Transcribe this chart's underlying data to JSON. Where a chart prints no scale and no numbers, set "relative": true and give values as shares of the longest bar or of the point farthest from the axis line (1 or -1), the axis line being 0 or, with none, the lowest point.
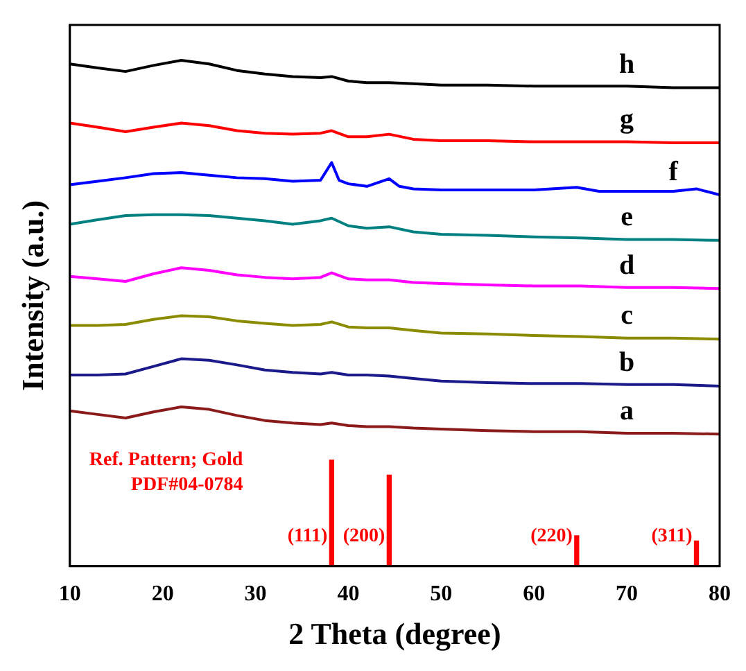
{
  "chart_data": {
    "type": "line",
    "relative": true,
    "xlabel": "2 Theta (degree)",
    "ylabel": "Intensity (a.u.)",
    "xlim": [
      10,
      80
    ],
    "xticks": [
      10,
      20,
      30,
      40,
      50,
      60,
      70,
      80
    ],
    "tick_labels": "x",
    "grid": false,
    "legend": false,
    "marker": "none",
    "line_style": "solid",
    "series": [
      {
        "name": "a",
        "color": "#8b1a1a",
        "x": [
          10,
          13,
          16,
          19,
          22,
          25,
          28,
          31,
          34,
          37,
          38.2,
          40,
          42,
          44.4,
          47,
          50,
          55,
          60,
          65,
          70,
          75,
          80
        ],
        "values": [
          0.307,
          0.3,
          0.293,
          0.305,
          0.315,
          0.31,
          0.298,
          0.288,
          0.283,
          0.28,
          0.283,
          0.278,
          0.276,
          0.276,
          0.273,
          0.271,
          0.268,
          0.266,
          0.266,
          0.263,
          0.263,
          0.261
        ]
      },
      {
        "name": "b",
        "color": "#1a1a8b",
        "x": [
          10,
          13,
          16,
          19,
          22,
          25,
          28,
          31,
          34,
          37,
          38.2,
          40,
          42,
          44.4,
          47,
          50,
          55,
          60,
          65,
          70,
          75,
          80
        ],
        "values": [
          0.378,
          0.378,
          0.38,
          0.395,
          0.41,
          0.407,
          0.398,
          0.388,
          0.383,
          0.38,
          0.383,
          0.378,
          0.378,
          0.376,
          0.371,
          0.366,
          0.363,
          0.361,
          0.361,
          0.359,
          0.359,
          0.356
        ]
      },
      {
        "name": "c",
        "color": "#8b8b00",
        "x": [
          10,
          13,
          16,
          19,
          22,
          25,
          28,
          31,
          34,
          37,
          38.2,
          40,
          42,
          44.4,
          47,
          50,
          55,
          60,
          65,
          70,
          75,
          80
        ],
        "values": [
          0.476,
          0.476,
          0.478,
          0.488,
          0.495,
          0.493,
          0.485,
          0.48,
          0.476,
          0.478,
          0.483,
          0.473,
          0.471,
          0.471,
          0.466,
          0.461,
          0.459,
          0.456,
          0.454,
          0.451,
          0.451,
          0.449
        ]
      },
      {
        "name": "d",
        "color": "#ff00ff",
        "x": [
          10,
          13,
          16,
          19,
          22,
          25,
          28,
          31,
          34,
          37,
          38.2,
          40,
          42,
          44.4,
          47,
          50,
          55,
          60,
          65,
          70,
          75,
          80
        ],
        "values": [
          0.573,
          0.568,
          0.563,
          0.578,
          0.59,
          0.585,
          0.576,
          0.571,
          0.568,
          0.571,
          0.58,
          0.568,
          0.566,
          0.566,
          0.561,
          0.559,
          0.556,
          0.554,
          0.554,
          0.551,
          0.551,
          0.549
        ]
      },
      {
        "name": "e",
        "color": "#008080",
        "x": [
          10,
          13,
          16,
          19,
          22,
          25,
          28,
          31,
          34,
          37,
          38.2,
          40,
          42,
          44.4,
          47,
          50,
          55,
          60,
          65,
          70,
          75,
          80
        ],
        "values": [
          0.676,
          0.685,
          0.693,
          0.695,
          0.695,
          0.693,
          0.688,
          0.683,
          0.676,
          0.683,
          0.688,
          0.673,
          0.668,
          0.671,
          0.661,
          0.656,
          0.654,
          0.651,
          0.649,
          0.646,
          0.646,
          0.644
        ]
      },
      {
        "name": "f",
        "color": "#0000ff",
        "x": [
          10,
          13,
          16,
          19,
          22,
          25,
          28,
          31,
          34,
          37,
          38.2,
          39,
          40,
          42,
          44.4,
          45.5,
          47,
          50,
          55,
          60,
          64.6,
          67,
          70,
          75,
          77.5,
          80
        ],
        "values": [
          0.754,
          0.761,
          0.768,
          0.776,
          0.778,
          0.773,
          0.768,
          0.766,
          0.761,
          0.763,
          0.798,
          0.763,
          0.756,
          0.751,
          0.766,
          0.751,
          0.746,
          0.744,
          0.744,
          0.744,
          0.749,
          0.741,
          0.741,
          0.741,
          0.746,
          0.734
        ]
      },
      {
        "name": "g",
        "color": "#ff0000",
        "x": [
          10,
          13,
          16,
          19,
          22,
          25,
          28,
          31,
          34,
          37,
          38.2,
          40,
          42,
          44.4,
          47,
          50,
          55,
          60,
          65,
          70,
          75,
          80
        ],
        "values": [
          0.876,
          0.868,
          0.859,
          0.868,
          0.876,
          0.871,
          0.861,
          0.856,
          0.854,
          0.856,
          0.861,
          0.849,
          0.849,
          0.854,
          0.844,
          0.841,
          0.841,
          0.839,
          0.839,
          0.839,
          0.837,
          0.837
        ]
      },
      {
        "name": "h",
        "color": "#000000",
        "x": [
          10,
          13,
          16,
          19,
          22,
          25,
          28,
          31,
          34,
          37,
          38.2,
          40,
          42,
          44.4,
          47,
          50,
          55,
          60,
          65,
          70,
          75,
          80
        ],
        "values": [
          0.993,
          0.985,
          0.978,
          0.99,
          1.0,
          0.993,
          0.98,
          0.973,
          0.968,
          0.966,
          0.968,
          0.959,
          0.956,
          0.956,
          0.954,
          0.951,
          0.951,
          0.949,
          0.949,
          0.949,
          0.946,
          0.946
        ]
      },
      {
        "type": "bar",
        "color": "#ff0000",
        "x": [
          38.2,
          44.4,
          64.6,
          77.5
        ],
        "values": [
          0.21,
          0.18,
          0.06,
          0.05
        ]
      }
    ],
    "annotations": [
      "Ref. Pattern; Gold",
      "PDF#04-0784",
      {
        "text": "(111)",
        "x": 38.2,
        "y": 0.04
      },
      {
        "text": "(200)",
        "x": 44.4,
        "y": 0.04
      },
      {
        "text": "(220)",
        "x": 64.6,
        "y": 0.04
      },
      {
        "text": "(311)",
        "x": 77.5,
        "y": 0.04
      }
    ]
  }
}
